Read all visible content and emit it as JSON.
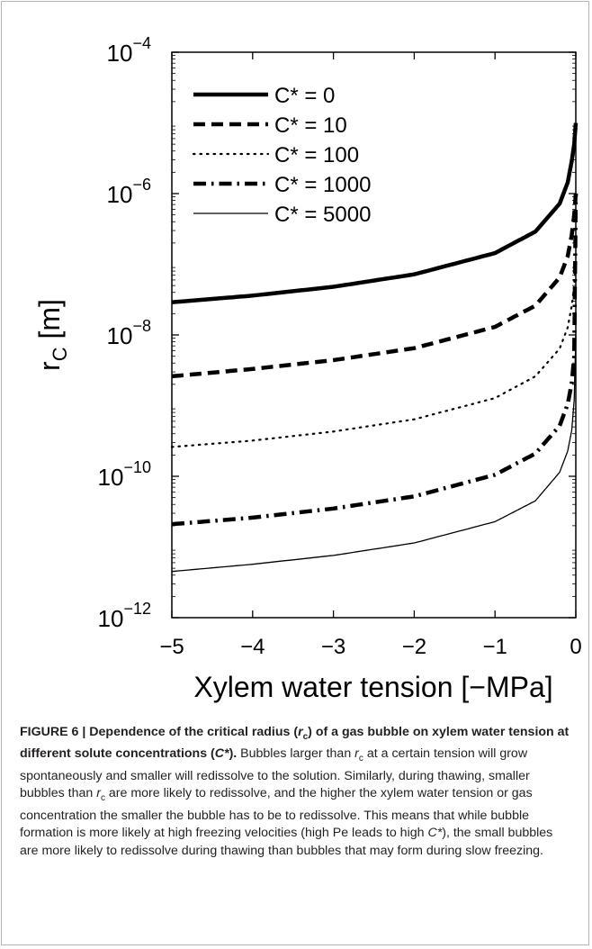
{
  "chart_data": {
    "type": "line",
    "xlabel": "Xylem water tension [−MPa]",
    "ylabel_main": "r",
    "ylabel_sub": "C",
    "ylabel_unit": " [m]",
    "xlim": [
      -5,
      0
    ],
    "ylim": [
      1e-12,
      0.0001
    ],
    "yscale": "log",
    "grid": false,
    "legend_position": "top-left",
    "x_ticks": [
      -5,
      -4,
      -3,
      -2,
      -1,
      0
    ],
    "x_tick_labels": [
      "−5",
      "−4",
      "−3",
      "−2",
      "−1",
      "0"
    ],
    "y_ticks": [
      {
        "base": "10",
        "exp": "−12",
        "value": 1e-12
      },
      {
        "base": "10",
        "exp": "−10",
        "value": 1e-10
      },
      {
        "base": "10",
        "exp": "−8",
        "value": 1e-08
      },
      {
        "base": "10",
        "exp": "−6",
        "value": 1e-06
      },
      {
        "base": "10",
        "exp": "−4",
        "value": 0.0001
      }
    ],
    "series": [
      {
        "name": "C* = 0",
        "style": "solid-thick",
        "x": [
          -5,
          -4,
          -3,
          -2,
          -1,
          -0.5,
          -0.2,
          -0.1,
          -0.05,
          -0.02,
          0
        ],
        "y": [
          2.9e-08,
          3.6e-08,
          4.8e-08,
          7.2e-08,
          1.44e-07,
          2.9e-07,
          7.2e-07,
          1.44e-06,
          2.9e-06,
          5e-06,
          1e-05
        ]
      },
      {
        "name": "C* = 10",
        "style": "dashed-thick",
        "x": [
          -5,
          -4,
          -3,
          -2,
          -1,
          -0.5,
          -0.2,
          -0.1,
          -0.05,
          -0.02,
          0
        ],
        "y": [
          2.6e-09,
          3.3e-09,
          4.4e-09,
          6.5e-09,
          1.3e-08,
          2.6e-08,
          6.5e-08,
          1.3e-07,
          2.6e-07,
          5e-07,
          1e-06
        ]
      },
      {
        "name": "C* = 100",
        "style": "dotted",
        "x": [
          -5,
          -4,
          -3,
          -2,
          -1,
          -0.5,
          -0.2,
          -0.1,
          -0.05,
          -0.02,
          0
        ],
        "y": [
          2.6e-10,
          3.2e-10,
          4.3e-10,
          6.4e-10,
          1.28e-09,
          2.6e-09,
          6.4e-09,
          1.28e-08,
          2.6e-08,
          5e-08,
          1e-07
        ]
      },
      {
        "name": "C* = 1000",
        "style": "dashdot-thick",
        "x": [
          -5,
          -4,
          -3,
          -2,
          -1,
          -0.5,
          -0.2,
          -0.1,
          -0.05,
          -0.02,
          0
        ],
        "y": [
          2.1e-11,
          2.6e-11,
          3.5e-11,
          5.2e-11,
          1.05e-10,
          2.1e-10,
          5.2e-10,
          1.05e-09,
          2.1e-09,
          5e-09,
          1e-06
        ]
      },
      {
        "name": "C* = 5000",
        "style": "solid-thin",
        "x": [
          -5,
          -4,
          -3,
          -2,
          -1,
          -0.5,
          -0.2,
          -0.1,
          -0.05,
          -0.02,
          0
        ],
        "y": [
          4.5e-12,
          5.7e-12,
          7.6e-12,
          1.14e-11,
          2.28e-11,
          4.5e-11,
          1.14e-10,
          2.28e-10,
          4.5e-10,
          1.2e-09,
          1e-08
        ]
      }
    ]
  },
  "caption": {
    "fig_label": "FIGURE 6 | Dependence of the critical radius (",
    "r_symbol": "r",
    "c_sub": "c",
    "title_mid": ") of a gas bubble on xylem water tension at different solute concentrations (",
    "c_star": "C*",
    "title_end": ").",
    "b1": " Bubbles larger than ",
    "b2": " at a certain tension will grow spontaneously and smaller will redissolve to the solution. Similarly, during thawing, smaller bubbles than ",
    "b3": " are more likely to redissolve, and the higher the xylem water tension or gas concentration the smaller the bubble has to be to redissolve. This means that while bubble formation is more likely at high freezing velocities (high Pe leads to high ",
    "b4": "), the small bubbles are more likely to redissolve during thawing than bubbles that may form during slow freezing."
  }
}
